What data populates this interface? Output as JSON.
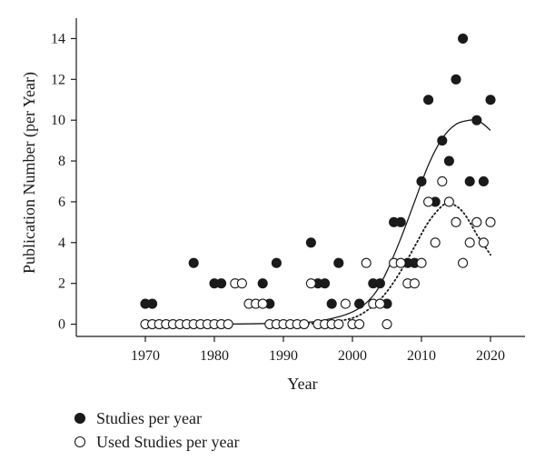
{
  "chart_data": {
    "type": "scatter",
    "xlabel": "Year",
    "ylabel": "Publication Number (per Year)",
    "xlim": [
      1960,
      2025
    ],
    "ylim": [
      -0.6,
      15
    ],
    "x_ticks": [
      1970,
      1980,
      1990,
      2000,
      2010,
      2020
    ],
    "y_ticks": [
      0,
      2,
      4,
      6,
      8,
      10,
      12,
      14
    ],
    "grid": false,
    "legend_position": "bottom-left",
    "series": [
      {
        "name": "Studies per year",
        "marker": "filled-circle",
        "color": "#1a1a1a",
        "points": [
          [
            1970,
            1
          ],
          [
            1971,
            1
          ],
          [
            1977,
            3
          ],
          [
            1980,
            2
          ],
          [
            1981,
            2
          ],
          [
            1987,
            2
          ],
          [
            1988,
            1
          ],
          [
            1989,
            3
          ],
          [
            1994,
            4
          ],
          [
            1995,
            2
          ],
          [
            1996,
            2
          ],
          [
            1997,
            1
          ],
          [
            1998,
            3
          ],
          [
            2001,
            1
          ],
          [
            2003,
            2
          ],
          [
            2004,
            2
          ],
          [
            2005,
            1
          ],
          [
            2006,
            5
          ],
          [
            2007,
            5
          ],
          [
            2008,
            3
          ],
          [
            2009,
            3
          ],
          [
            2010,
            7
          ],
          [
            2011,
            11
          ],
          [
            2012,
            6
          ],
          [
            2013,
            9
          ],
          [
            2014,
            8
          ],
          [
            2015,
            12
          ],
          [
            2016,
            14
          ],
          [
            2017,
            7
          ],
          [
            2018,
            10
          ],
          [
            2019,
            7
          ],
          [
            2020,
            11
          ]
        ]
      },
      {
        "name": "Used Studies per year",
        "marker": "open-circle",
        "color": "#1a1a1a",
        "points": [
          [
            1970,
            0
          ],
          [
            1971,
            0
          ],
          [
            1972,
            0
          ],
          [
            1973,
            0
          ],
          [
            1974,
            0
          ],
          [
            1975,
            0
          ],
          [
            1976,
            0
          ],
          [
            1977,
            0
          ],
          [
            1978,
            0
          ],
          [
            1979,
            0
          ],
          [
            1980,
            0
          ],
          [
            1981,
            0
          ],
          [
            1982,
            0
          ],
          [
            1983,
            2
          ],
          [
            1984,
            2
          ],
          [
            1985,
            1
          ],
          [
            1986,
            1
          ],
          [
            1987,
            1
          ],
          [
            1988,
            0
          ],
          [
            1989,
            0
          ],
          [
            1990,
            0
          ],
          [
            1991,
            0
          ],
          [
            1992,
            0
          ],
          [
            1993,
            0
          ],
          [
            1994,
            2
          ],
          [
            1995,
            0
          ],
          [
            1996,
            0
          ],
          [
            1997,
            0
          ],
          [
            1998,
            0
          ],
          [
            1999,
            1
          ],
          [
            2000,
            0
          ],
          [
            2001,
            0
          ],
          [
            2002,
            3
          ],
          [
            2003,
            1
          ],
          [
            2004,
            1
          ],
          [
            2005,
            0
          ],
          [
            2006,
            3
          ],
          [
            2007,
            3
          ],
          [
            2008,
            2
          ],
          [
            2009,
            2
          ],
          [
            2010,
            3
          ],
          [
            2011,
            6
          ],
          [
            2012,
            4
          ],
          [
            2013,
            7
          ],
          [
            2014,
            6
          ],
          [
            2015,
            5
          ],
          [
            2016,
            3
          ],
          [
            2017,
            4
          ],
          [
            2018,
            5
          ],
          [
            2019,
            4
          ],
          [
            2020,
            5
          ]
        ]
      }
    ],
    "fit_lines": [
      {
        "style": "solid",
        "points": [
          [
            1970,
            0
          ],
          [
            1980,
            0
          ],
          [
            1990,
            0.05
          ],
          [
            1995,
            0.15
          ],
          [
            2000,
            0.6
          ],
          [
            2003,
            1.4
          ],
          [
            2005,
            2.6
          ],
          [
            2007,
            4.2
          ],
          [
            2009,
            6.0
          ],
          [
            2011,
            7.8
          ],
          [
            2013,
            9.1
          ],
          [
            2015,
            9.8
          ],
          [
            2017,
            10.0
          ],
          [
            2018,
            10.0
          ],
          [
            2019,
            9.8
          ],
          [
            2020,
            9.5
          ]
        ]
      },
      {
        "style": "dotted",
        "points": [
          [
            1990,
            0.0
          ],
          [
            1995,
            0.05
          ],
          [
            2000,
            0.3
          ],
          [
            2003,
            0.9
          ],
          [
            2005,
            1.6
          ],
          [
            2007,
            2.6
          ],
          [
            2009,
            3.8
          ],
          [
            2011,
            5.0
          ],
          [
            2013,
            5.8
          ],
          [
            2014,
            5.9
          ],
          [
            2015,
            5.8
          ],
          [
            2016,
            5.5
          ],
          [
            2017,
            5.0
          ],
          [
            2018,
            4.4
          ],
          [
            2019,
            3.9
          ],
          [
            2020,
            3.4
          ]
        ]
      }
    ]
  }
}
